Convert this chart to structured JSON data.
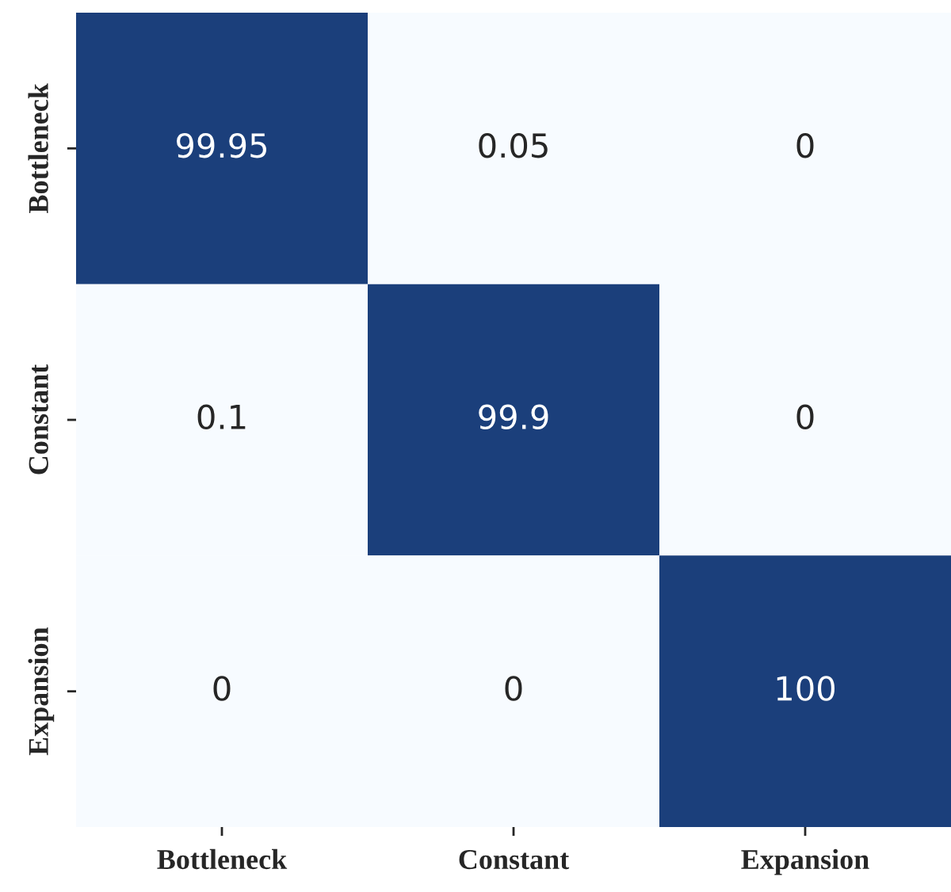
{
  "chart_data": {
    "type": "heatmap",
    "categories": [
      "Bottleneck",
      "Constant",
      "Expansion"
    ],
    "y_categories": [
      "Bottleneck",
      "Constant",
      "Expansion"
    ],
    "cells": [
      [
        99.95,
        0.05,
        0
      ],
      [
        0.1,
        99.9,
        0
      ],
      [
        0,
        0,
        100
      ]
    ],
    "colors": [
      "#f7fbff",
      "#1b3f7b"
    ],
    "data_labels": true
  }
}
